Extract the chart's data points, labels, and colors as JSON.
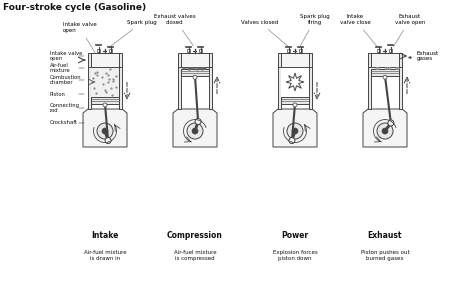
{
  "title": "Four-stroke cycle (Gasoline)",
  "strokes": [
    "Intake",
    "Compression",
    "Power",
    "Exhaust"
  ],
  "descriptions": [
    "Air-fuel mixture\nis drawn in",
    "Air-fuel mixture\nis compressed",
    "Explosion forces\npiston down",
    "Piston pushes out\nburned gases"
  ],
  "left_labels": [
    [
      "Intake valve\nopen",
      0.82
    ],
    [
      "Air-fuel\nmixture",
      0.7
    ],
    [
      "Combustion\nchamber",
      0.55
    ],
    [
      "Piston",
      0.42
    ],
    [
      "Connecting\nrod",
      0.3
    ],
    [
      "Crockshaft",
      0.16
    ]
  ],
  "bg_color": "#ffffff",
  "text_color": "#111111",
  "line_color": "#444444",
  "gray_fill": "#e8e8e8",
  "light_fill": "#f5f5f5"
}
